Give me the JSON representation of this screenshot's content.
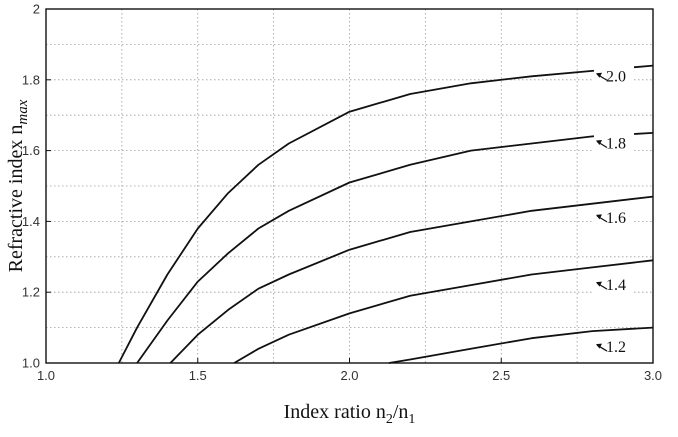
{
  "chart_data": {
    "type": "line",
    "xlabel_main": "Index ratio n",
    "xlabel_sub2": "2",
    "xlabel_mid": "/n",
    "xlabel_sub1": "1",
    "ylabel_main": "Refractive index n",
    "ylabel_sub": "max",
    "xlim": [
      1.0,
      3.0
    ],
    "ylim": [
      1.0,
      2.0
    ],
    "xticks": [
      {
        "value": 1.0,
        "label": "1.0"
      },
      {
        "value": 1.5,
        "label": "1.5"
      },
      {
        "value": 2.0,
        "label": "2.0"
      },
      {
        "value": 2.5,
        "label": "2.5"
      },
      {
        "value": 3.0,
        "label": "3.0"
      }
    ],
    "yticks": [
      {
        "value": 1.0,
        "label": "1.0"
      },
      {
        "value": 1.2,
        "label": "1.2"
      },
      {
        "value": 1.4,
        "label": "1.4"
      },
      {
        "value": 1.6,
        "label": "1.6"
      },
      {
        "value": 1.8,
        "label": "1.8"
      },
      {
        "value": 2.0,
        "label": "2"
      }
    ],
    "grid": true,
    "series": [
      {
        "name": "2.0",
        "x": [
          1.24,
          1.3,
          1.4,
          1.5,
          1.6,
          1.7,
          1.8,
          2.0,
          2.2,
          2.4,
          2.6,
          2.8,
          3.0
        ],
        "y": [
          1.0,
          1.1,
          1.25,
          1.38,
          1.48,
          1.56,
          1.62,
          1.71,
          1.76,
          1.79,
          1.81,
          1.825,
          1.84
        ]
      },
      {
        "name": "1.8",
        "x": [
          1.3,
          1.4,
          1.5,
          1.6,
          1.7,
          1.8,
          2.0,
          2.2,
          2.4,
          2.6,
          2.8,
          3.0
        ],
        "y": [
          1.0,
          1.12,
          1.23,
          1.31,
          1.38,
          1.43,
          1.51,
          1.56,
          1.6,
          1.62,
          1.64,
          1.65
        ]
      },
      {
        "name": "1.6",
        "x": [
          1.41,
          1.5,
          1.6,
          1.7,
          1.8,
          2.0,
          2.2,
          2.4,
          2.6,
          2.8,
          3.0
        ],
        "y": [
          1.0,
          1.08,
          1.15,
          1.21,
          1.25,
          1.32,
          1.37,
          1.4,
          1.43,
          1.45,
          1.47
        ]
      },
      {
        "name": "1.4",
        "x": [
          1.62,
          1.7,
          1.8,
          2.0,
          2.2,
          2.4,
          2.6,
          2.8,
          3.0
        ],
        "y": [
          1.0,
          1.04,
          1.08,
          1.14,
          1.19,
          1.22,
          1.25,
          1.27,
          1.29
        ]
      },
      {
        "name": "1.2",
        "x": [
          2.13,
          2.2,
          2.4,
          2.6,
          2.8,
          3.0
        ],
        "y": [
          1.0,
          1.01,
          1.04,
          1.07,
          1.09,
          1.1
        ]
      }
    ],
    "curve_labels": [
      {
        "text": "2.0",
        "y": 1.81
      },
      {
        "text": "1.8",
        "y": 1.62
      },
      {
        "text": "1.6",
        "y": 1.41
      },
      {
        "text": "1.4",
        "y": 1.22
      },
      {
        "text": "1.2",
        "y": 1.045
      }
    ]
  }
}
